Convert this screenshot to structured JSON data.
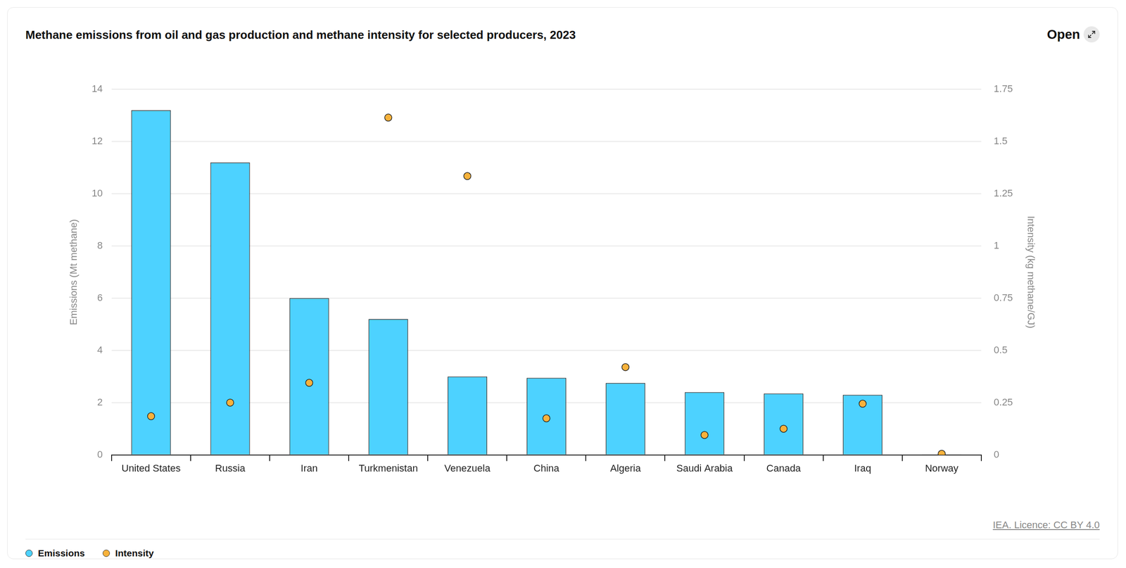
{
  "chart_data": {
    "type": "bar",
    "title": "Methane emissions from oil and gas production and methane intensity for selected producers, 2023",
    "button": "Open",
    "source": "IEA. Licence: CC BY 4.0",
    "y_label": "Emissions (Mt methane)",
    "y2_label": "Intensity (kg methane/GJ)",
    "categories": [
      "United States",
      "Russia",
      "Iran",
      "Turkmenistan",
      "Venezuela",
      "China",
      "Algeria",
      "Saudi Arabia",
      "Canada",
      "Iraq",
      "Norway"
    ],
    "series": [
      {
        "name": "Emissions",
        "type": "bar",
        "color": "#4dd2ff",
        "values": [
          13.2,
          11.2,
          6.0,
          5.2,
          3.0,
          2.95,
          2.75,
          2.4,
          2.35,
          2.3,
          0.02
        ]
      },
      {
        "name": "Intensity",
        "type": "scatter",
        "axis": "y2",
        "color": "#f7b23b",
        "marker": "circle",
        "values": [
          0.185,
          0.25,
          0.345,
          1.615,
          1.335,
          0.175,
          0.42,
          0.095,
          0.125,
          0.245,
          0.005
        ]
      }
    ],
    "ylim": [
      0,
      14
    ],
    "yticks": [
      0,
      2,
      4,
      6,
      8,
      10,
      12,
      14
    ],
    "y2lim": [
      0,
      1.75
    ],
    "y2ticks": [
      0,
      0.25,
      0.5,
      0.75,
      1,
      1.25,
      1.5,
      1.75
    ],
    "grid": true,
    "legend": "bottom"
  }
}
